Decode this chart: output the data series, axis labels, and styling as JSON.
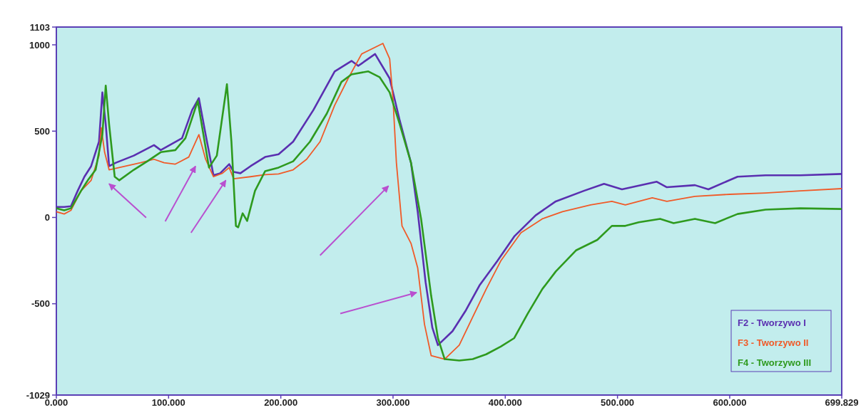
{
  "chart_data": {
    "type": "line",
    "xlim": [
      0,
      699.829
    ],
    "ylim": [
      -1029,
      1103
    ],
    "xticks": [
      {
        "value": 0,
        "label": "0.000"
      },
      {
        "value": 100,
        "label": "100.000"
      },
      {
        "value": 200,
        "label": "200.000"
      },
      {
        "value": 300,
        "label": "300.000"
      },
      {
        "value": 400,
        "label": "400.000"
      },
      {
        "value": 500,
        "label": "500.000"
      },
      {
        "value": 600,
        "label": "600.000"
      },
      {
        "value": 699.829,
        "label": "699.829"
      }
    ],
    "yticks": [
      -1029,
      -500,
      0,
      500,
      1000,
      1103
    ],
    "grid": false,
    "legend": "bottom right",
    "marker": "none",
    "line_style": "solid",
    "series": [
      {
        "name": "F2 - Tworzywo I",
        "color": "#5a2fb0",
        "x": [
          0,
          7,
          13,
          19,
          25,
          31,
          38,
          41,
          44,
          47,
          53,
          69,
          87,
          93,
          112,
          121,
          127,
          133,
          140,
          146,
          154,
          158,
          164,
          173,
          186,
          198,
          211,
          229,
          248,
          263,
          269,
          284,
          297,
          306,
          316,
          322,
          329,
          335,
          340,
          353,
          365,
          377,
          393,
          408,
          427,
          445,
          470,
          488,
          504,
          535,
          544,
          569,
          581,
          607,
          632,
          663,
          699.829
        ],
        "values": [
          61,
          61,
          65,
          154,
          236,
          297,
          439,
          724,
          540,
          297,
          317,
          358,
          419,
          390,
          459,
          622,
          691,
          480,
          244,
          256,
          309,
          264,
          256,
          297,
          350,
          366,
          439,
          622,
          846,
          907,
          878,
          947,
          805,
          561,
          317,
          33,
          -374,
          -638,
          -740,
          -659,
          -537,
          -394,
          -252,
          -110,
          12,
          93,
          154,
          195,
          163,
          207,
          175,
          187,
          163,
          236,
          244,
          244,
          252
        ]
      },
      {
        "name": "F3 - Tworzywo II",
        "color": "#f05a28",
        "x": [
          0,
          7,
          13,
          22,
          31,
          38,
          40,
          43,
          47,
          56,
          75,
          87,
          96,
          106,
          118,
          127,
          133,
          140,
          148,
          154,
          158,
          173,
          186,
          198,
          211,
          223,
          235,
          248,
          260,
          272,
          291,
          297,
          300,
          303,
          308,
          316,
          322,
          328,
          334,
          346,
          359,
          371,
          383,
          396,
          414,
          433,
          451,
          476,
          495,
          507,
          531,
          544,
          569,
          600,
          632,
          663,
          699.829
        ],
        "values": [
          33,
          20,
          41,
          154,
          215,
          358,
          520,
          378,
          276,
          289,
          317,
          337,
          317,
          309,
          350,
          480,
          337,
          236,
          256,
          289,
          224,
          236,
          248,
          252,
          276,
          337,
          439,
          650,
          805,
          947,
          1008,
          919,
          683,
          317,
          -49,
          -150,
          -293,
          -618,
          -801,
          -821,
          -740,
          -577,
          -415,
          -252,
          -89,
          -8,
          33,
          73,
          93,
          73,
          114,
          93,
          122,
          134,
          142,
          154,
          167
        ]
      },
      {
        "name": "F4 - Tworzywo III",
        "color": "#2e9a1e",
        "x": [
          0,
          7,
          13,
          22,
          28,
          35,
          41,
          44,
          47,
          52,
          56,
          69,
          81,
          93,
          106,
          115,
          126,
          130,
          136,
          143,
          152,
          156,
          160,
          162,
          166,
          170,
          177,
          186,
          198,
          211,
          226,
          241,
          254,
          263,
          278,
          288,
          297,
          306,
          316,
          325,
          334,
          340,
          346,
          359,
          371,
          383,
          396,
          408,
          420,
          433,
          445,
          463,
          482,
          495,
          507,
          519,
          538,
          550,
          569,
          587,
          607,
          632,
          663,
          699.829
        ],
        "values": [
          53,
          41,
          53,
          154,
          215,
          276,
          480,
          764,
          540,
          236,
          215,
          276,
          325,
          378,
          390,
          459,
          675,
          520,
          289,
          358,
          772,
          439,
          -49,
          -57,
          24,
          -20,
          154,
          268,
          289,
          325,
          439,
          602,
          785,
          829,
          846,
          813,
          724,
          540,
          317,
          -8,
          -455,
          -699,
          -821,
          -829,
          -821,
          -793,
          -748,
          -699,
          -557,
          -415,
          -313,
          -191,
          -130,
          -49,
          -49,
          -28,
          -8,
          -33,
          -8,
          -33,
          20,
          45,
          53,
          49
        ]
      }
    ]
  }
}
